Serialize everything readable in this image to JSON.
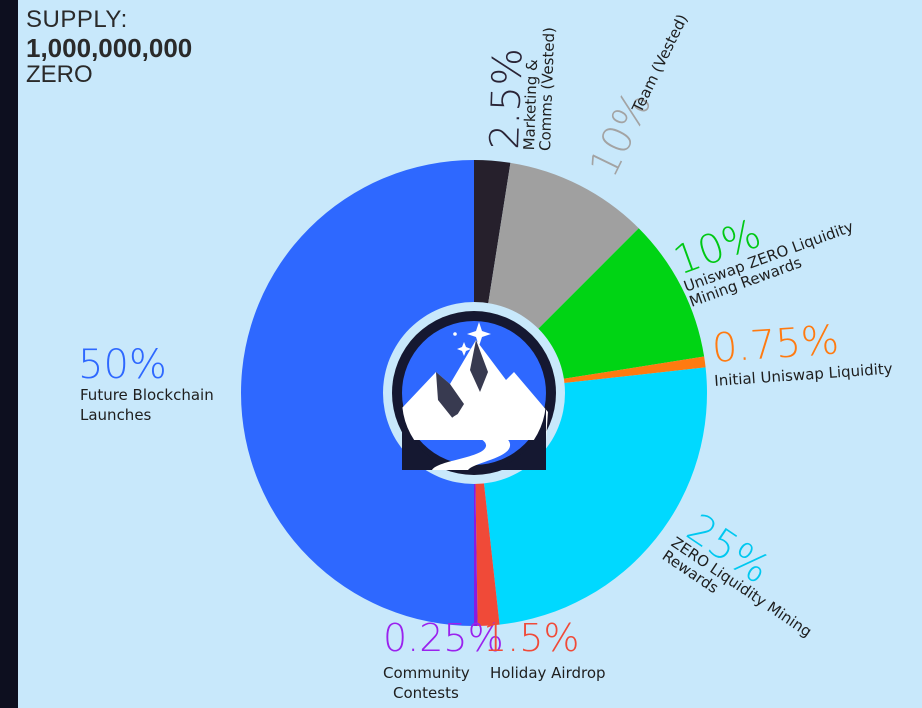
{
  "supply": {
    "heading": "SUPPLY:",
    "amount": "1,000,000,000",
    "token": "ZERO"
  },
  "chart_data": {
    "type": "pie",
    "title": "",
    "slices": [
      {
        "value": 2.5,
        "percent_label": "2.5%",
        "label": [
          "Marketing &",
          "Comms (Vested)"
        ],
        "color": "#26202c",
        "label_color": "#2a2436"
      },
      {
        "value": 10,
        "percent_label": "10%",
        "label": [
          "Team (Vested)"
        ],
        "color": "#a0a0a0",
        "label_color": "#a3a3a3"
      },
      {
        "value": 10,
        "percent_label": "10%",
        "label": [
          "Uniswap ZERO Liquidity",
          "Mining Rewards"
        ],
        "color": "#00d414",
        "label_color": "#00c814"
      },
      {
        "value": 0.75,
        "percent_label": "0.75%",
        "label": [
          "Initial Uniswap Liquidity"
        ],
        "color": "#ff7a10",
        "label_color": "#ff7a10"
      },
      {
        "value": 25,
        "percent_label": "25%",
        "label": [
          "ZERO Liquidity Mining",
          "Rewards"
        ],
        "color": "#00d9ff",
        "label_color": "#00c8f0"
      },
      {
        "value": 1.5,
        "percent_label": "1.5%",
        "label": [
          "Holiday Airdrop"
        ],
        "color": "#f04a38",
        "label_color": "#f04a38"
      },
      {
        "value": 0.25,
        "percent_label": "0.25%",
        "label": [
          "Community",
          "Contests"
        ],
        "color": "#8a1be0",
        "label_color": "#9a22ee"
      },
      {
        "value": 50,
        "percent_label": "50%",
        "label": [
          "Future Blockchain",
          "Launches"
        ],
        "color": "#2e68ff",
        "label_color": "#2e68ff"
      }
    ]
  },
  "colors": {
    "background": "#0d0f1f",
    "panel": "#c8e8fb",
    "center_badge": "#151831",
    "center_ring": "#c8e8fb"
  },
  "center_icon": "mountain-road-logo-icon"
}
